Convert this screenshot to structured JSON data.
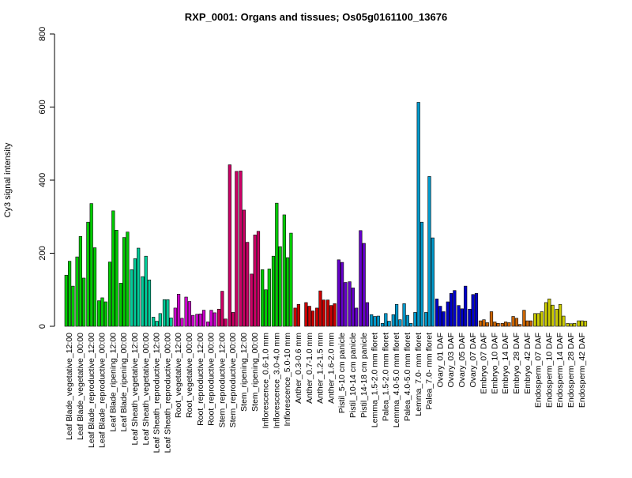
{
  "chart_data": {
    "type": "bar",
    "title": "RXP_0001: Organs and tissues; Os05g0161100_13676",
    "xlabel": "",
    "ylabel": "Cy3 signal intensity",
    "ylim": [
      0,
      800
    ],
    "yticks": [
      0,
      200,
      400,
      600,
      800
    ],
    "grid": false,
    "legend": "none",
    "groups": [
      {
        "label": "Leaf Blade_vegetative_12:00",
        "color": "#00CC00",
        "values": [
          140,
          178,
          110
        ]
      },
      {
        "label": "Leaf Blade_vegetative_00:00",
        "color": "#00CC00",
        "values": [
          190,
          246,
          132
        ]
      },
      {
        "label": "Leaf Blade_reproductive_12:00",
        "color": "#00CC00",
        "values": [
          285,
          336,
          215
        ]
      },
      {
        "label": "Leaf Blade_reproductive_00:00",
        "color": "#00CC00",
        "values": [
          70,
          78,
          67
        ]
      },
      {
        "label": "Leaf Blade_ripening_12:00",
        "color": "#00CC00",
        "values": [
          176,
          316,
          263
        ]
      },
      {
        "label": "Leaf Blade_ripening_00:00",
        "color": "#00CC00",
        "values": [
          118,
          243,
          258
        ]
      },
      {
        "label": "Leaf Sheath_vegetative_12:00",
        "color": "#00CC99",
        "values": [
          155,
          185,
          214
        ]
      },
      {
        "label": "Leaf Sheath_vegetative_00:00",
        "color": "#00CC99",
        "values": [
          136,
          192,
          127
        ]
      },
      {
        "label": "Leaf Sheath_reproductive_12:00",
        "color": "#00CC99",
        "values": [
          25,
          14,
          35
        ]
      },
      {
        "label": "Leaf Sheath_reproductive_00:00",
        "color": "#00CC99",
        "values": [
          73,
          73,
          23
        ]
      },
      {
        "label": "Root_vegetative_12:00",
        "color": "#CC00CC",
        "values": [
          50,
          88,
          22
        ]
      },
      {
        "label": "Root_vegetative_00:00",
        "color": "#CC00CC",
        "values": [
          80,
          68,
          30
        ]
      },
      {
        "label": "Root_reproductive_12:00",
        "color": "#CC00CC",
        "values": [
          33,
          34,
          44
        ]
      },
      {
        "label": "Root_reproductive_00:00",
        "color": "#CC00CC",
        "values": [
          12,
          44,
          37
        ]
      },
      {
        "label": "Stem_reproductive_12:00",
        "color": "#CC0066",
        "values": [
          47,
          96,
          20
        ]
      },
      {
        "label": "Stem_reproductive_00:00",
        "color": "#CC0066",
        "values": [
          442,
          38,
          424
        ]
      },
      {
        "label": "Stem_ripening_12:00",
        "color": "#CC0066",
        "values": [
          425,
          318,
          230
        ]
      },
      {
        "label": "Stem_ripening_00:00",
        "color": "#CC0066",
        "values": [
          143,
          250,
          260
        ]
      },
      {
        "label": "Inflorescence_0.6-1.0 mm",
        "color": "#00CC00",
        "values": [
          155,
          100,
          157
        ]
      },
      {
        "label": "Inflorescence_3.0-4.0 mm",
        "color": "#00CC00",
        "values": [
          192,
          337,
          218
        ]
      },
      {
        "label": "Inflorescence_5.0-10 mm",
        "color": "#00CC00",
        "values": [
          305,
          188,
          255
        ]
      },
      {
        "label": "Anther_0.3-0.6 mm",
        "color": "#CC0000",
        "values": [
          50,
          60
        ]
      },
      {
        "label": "Anther_0.7-1.0 mm",
        "color": "#CC0000",
        "values": [
          65,
          55,
          42
        ]
      },
      {
        "label": "Anther_1.2-1.5 mm",
        "color": "#CC0000",
        "values": [
          50,
          97,
          72
        ]
      },
      {
        "label": "Anther_1.6-2.0 mm",
        "color": "#CC0000",
        "values": [
          72,
          57,
          62
        ]
      },
      {
        "label": "Pistil_5-10 cm panicle",
        "color": "#6600CC",
        "values": [
          182,
          175,
          120
        ]
      },
      {
        "label": "Pistil_10-14 cm panicle",
        "color": "#6600CC",
        "values": [
          122,
          105,
          50
        ]
      },
      {
        "label": "Pistil_14-18 cm panicle",
        "color": "#6600CC",
        "values": [
          262,
          227,
          65
        ]
      },
      {
        "label": "Lemma_1.5-2.0 mm floret",
        "color": "#0099CC",
        "values": [
          32,
          27,
          28
        ]
      },
      {
        "label": "Palea_1.5-2.0 mm floret",
        "color": "#0099CC",
        "values": [
          8,
          35,
          14
        ]
      },
      {
        "label": "Lemma_4.0-5.0 mm floret",
        "color": "#0099CC",
        "values": [
          32,
          60,
          18
        ]
      },
      {
        "label": "Palea_4.0-5.0 mm floret",
        "color": "#0099CC",
        "values": [
          62,
          30,
          8
        ]
      },
      {
        "label": "Lemma_7.0- mm floret",
        "color": "#0099CC",
        "values": [
          38,
          613,
          285
        ]
      },
      {
        "label": "Palea_7.0- mm floret",
        "color": "#0099CC",
        "values": [
          38,
          410,
          242
        ]
      },
      {
        "label": "Ovary_01 DAF",
        "color": "#0000CC",
        "values": [
          75,
          55,
          40
        ]
      },
      {
        "label": "Ovary_03 DAF",
        "color": "#0000CC",
        "values": [
          67,
          90,
          98
        ]
      },
      {
        "label": "Ovary_05 DAF",
        "color": "#0000CC",
        "values": [
          57,
          48,
          110
        ]
      },
      {
        "label": "Ovary_07 DAF",
        "color": "#0000CC",
        "values": [
          47,
          87,
          90
        ]
      },
      {
        "label": "Embryo_07 DAF",
        "color": "#CC6600",
        "values": [
          15,
          18,
          10
        ]
      },
      {
        "label": "Embryo_10 DAF",
        "color": "#CC6600",
        "values": [
          40,
          12,
          8
        ]
      },
      {
        "label": "Embryo_14 DAF",
        "color": "#CC6600",
        "values": [
          8,
          12,
          10
        ]
      },
      {
        "label": "Embryo_28 DAF",
        "color": "#CC6600",
        "values": [
          27,
          22,
          5
        ]
      },
      {
        "label": "Embryo_42 DAF",
        "color": "#CC6600",
        "values": [
          44,
          15,
          15
        ]
      },
      {
        "label": "Endosperm_07 DAF",
        "color": "#CCCC00",
        "values": [
          35,
          35,
          40
        ]
      },
      {
        "label": "Endosperm_10 DAF",
        "color": "#CCCC00",
        "values": [
          65,
          75,
          58
        ]
      },
      {
        "label": "Endosperm_14 DAF",
        "color": "#CCCC00",
        "values": [
          47,
          60,
          28
        ]
      },
      {
        "label": "Endosperm_28 DAF",
        "color": "#CCCC00",
        "values": [
          8,
          7,
          8
        ]
      },
      {
        "label": "Endosperm_42 DAF",
        "color": "#CCCC00",
        "values": [
          15,
          15,
          14
        ]
      }
    ]
  }
}
